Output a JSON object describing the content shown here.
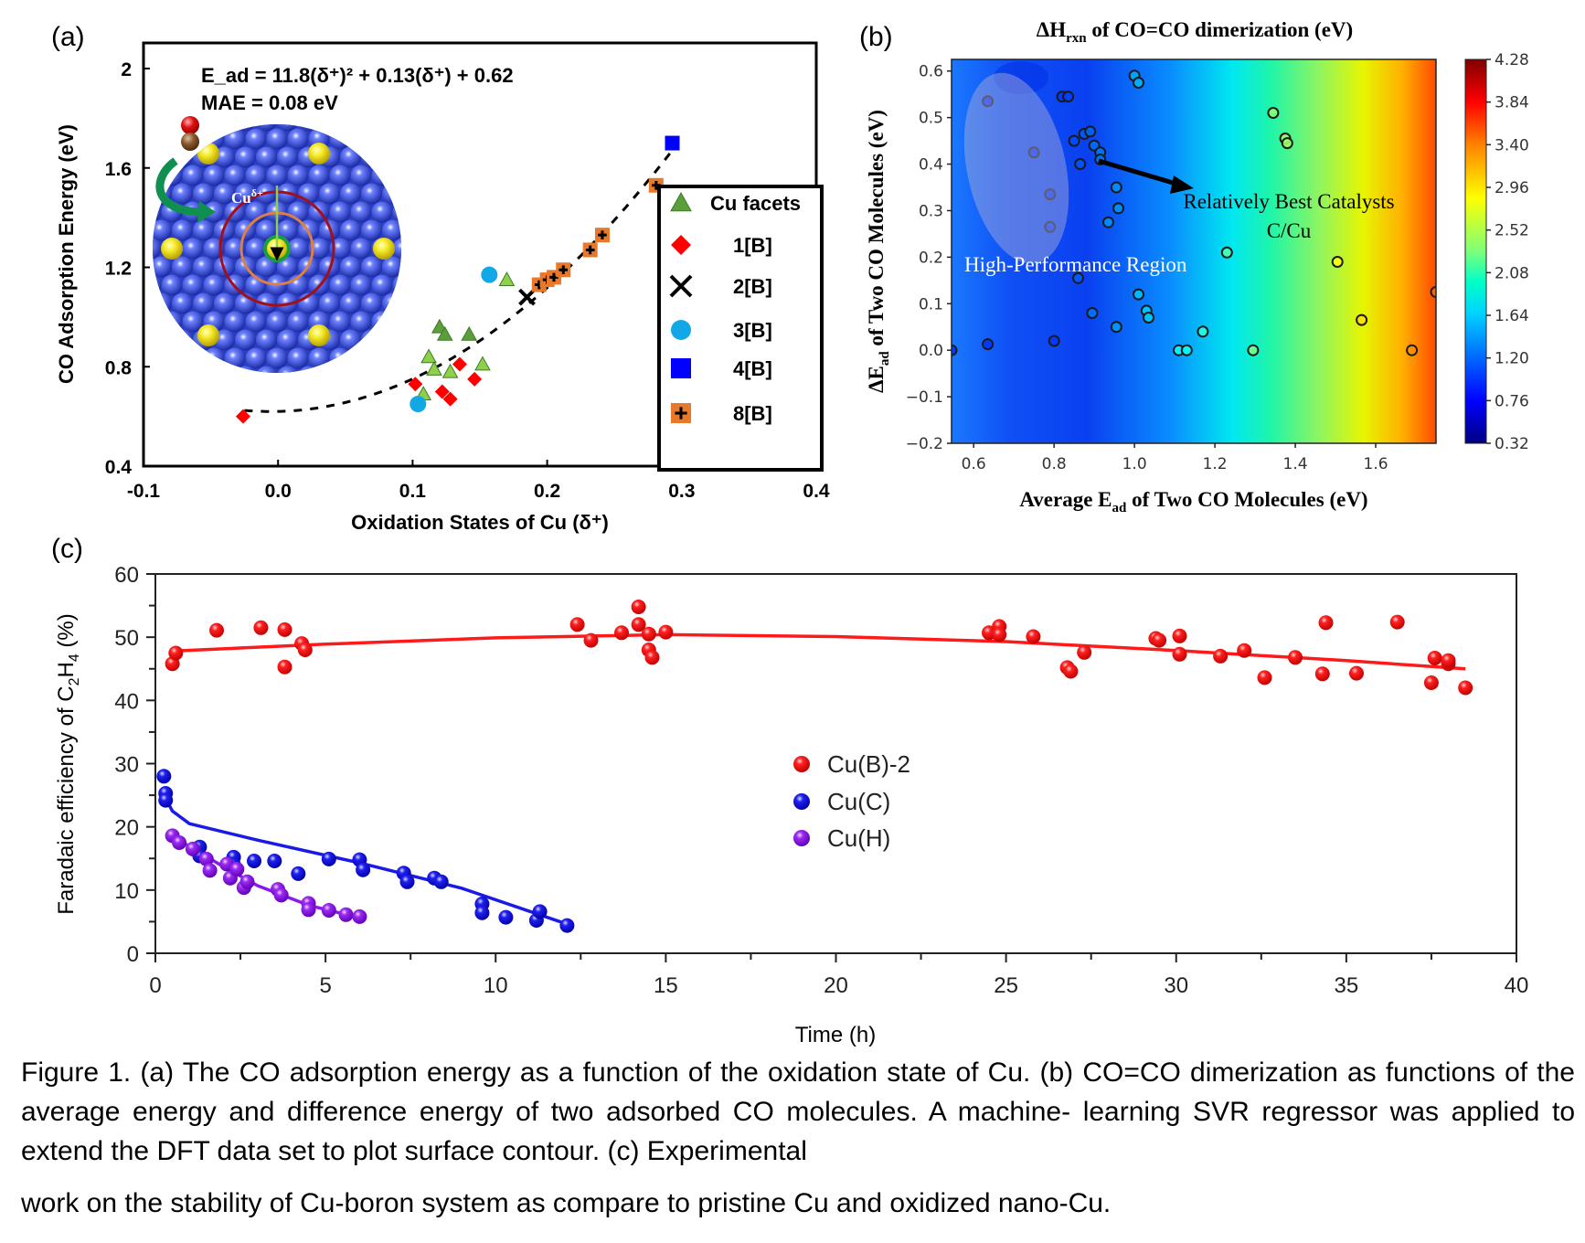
{
  "figure": {
    "caption_lines": [
      "Figure 1. (a) The CO adsorption energy as a function of the oxidation state of Cu. (b) CO=CO dimerization",
      "as functions of the average energy and difference energy of two adsorbed CO molecules. A machine-",
      "learning SVR regressor was applied to extend the DFT data set to plot surface contour. (c) Experimental",
      "work on the stability of Cu-boron system as compare to pristine Cu and oxidized nano-Cu."
    ]
  },
  "chart_data": [
    {
      "panel": "(a)",
      "type": "scatter",
      "title": "",
      "xlabel": "Oxidation States of Cu (δ⁺)",
      "ylabel": "CO Adsorption Energy (eV)",
      "xlim": [
        -0.1,
        0.4
      ],
      "ylim": [
        0.4,
        2.0
      ],
      "xticks": [
        "-0.1",
        "0.0",
        "0.1",
        "0.2",
        "0.3",
        "0.4"
      ],
      "yticks": [
        "0.4",
        "0.8",
        "1.2",
        "1.6",
        "2"
      ],
      "grid": false,
      "legend_position": "right",
      "annotation_lines": [
        "E_ad = 11.8(δ⁺)² + 0.13(δ⁺) + 0.62",
        "MAE = 0.08 eV"
      ],
      "inset_label": "Cu",
      "inset_label_sup": "δ+",
      "fit": {
        "name": "quadratic fit",
        "a": 11.8,
        "b": 0.13,
        "c": 0.62,
        "x_range": [
          -0.025,
          0.295
        ],
        "style": "dashed"
      },
      "series": [
        {
          "name": "Cu facets",
          "marker": "triangle",
          "color": "#5c9e3c",
          "points": [
            [
              0.108,
              0.69
            ],
            [
              0.112,
              0.84
            ],
            [
              0.12,
              0.96
            ],
            [
              0.124,
              0.93
            ],
            [
              0.142,
              0.93
            ],
            [
              0.116,
              0.79
            ],
            [
              0.128,
              0.78
            ],
            [
              0.152,
              0.81
            ],
            [
              0.17,
              1.15
            ]
          ]
        },
        {
          "name": "1[B]",
          "marker": "diamond",
          "color": "#ff0000",
          "points": [
            [
              -0.026,
              0.6
            ],
            [
              0.102,
              0.73
            ],
            [
              0.122,
              0.7
            ],
            [
              0.128,
              0.67
            ],
            [
              0.135,
              0.81
            ],
            [
              0.146,
              0.75
            ]
          ]
        },
        {
          "name": "2[B]",
          "marker": "x",
          "color": "#000000",
          "points": [
            [
              0.185,
              1.08
            ]
          ]
        },
        {
          "name": "3[B]",
          "marker": "circle",
          "color": "#12a8e8",
          "points": [
            [
              0.104,
              0.65
            ],
            [
              0.157,
              1.17
            ]
          ]
        },
        {
          "name": "4[B]",
          "marker": "square",
          "color": "#0000ff",
          "points": [
            [
              0.293,
              1.7
            ]
          ]
        },
        {
          "name": "8[B]",
          "marker": "square-plus",
          "color": "#e8782a",
          "points": [
            [
              0.194,
              1.13
            ],
            [
              0.2,
              1.15
            ],
            [
              0.205,
              1.16
            ],
            [
              0.212,
              1.19
            ],
            [
              0.232,
              1.27
            ],
            [
              0.241,
              1.33
            ],
            [
              0.281,
              1.53
            ]
          ]
        }
      ]
    },
    {
      "panel": "(b)",
      "type": "heatmap",
      "title": "ΔH",
      "title_sub": "rxn",
      "title_rest": " of CO=CO dimerization (eV)",
      "xlabel": "Average E",
      "xlabel_sub": "ad",
      "xlabel_rest": " of Two CO Molecules (eV)",
      "ylabel": "ΔE",
      "ylabel_sub": "ad",
      "ylabel_rest": " of Two CO Molecules (eV)",
      "xlim": [
        0.545,
        1.75
      ],
      "ylim": [
        -0.2,
        0.625
      ],
      "xticks": [
        "0.6",
        "0.8",
        "1.0",
        "1.2",
        "1.4",
        "1.6"
      ],
      "yticks": [
        "−0.2",
        "−0.1",
        "0.0",
        "0.1",
        "0.2",
        "0.3",
        "0.4",
        "0.5",
        "0.6"
      ],
      "colorbar": {
        "min": 0.32,
        "max": 4.28,
        "ticks": [
          "0.32",
          "0.76",
          "1.20",
          "1.64",
          "2.08",
          "2.52",
          "2.96",
          "3.40",
          "3.84",
          "4.28"
        ],
        "colormap": "jet"
      },
      "annotations": {
        "arrow_label_line1": "Relatively Best Catalysts",
        "arrow_label_line2": "C/Cu",
        "region_label": "High-Performance Region"
      },
      "points": [
        [
          0.545,
          0.0
        ],
        [
          0.635,
          0.013
        ],
        [
          0.635,
          0.535
        ],
        [
          0.75,
          0.425
        ],
        [
          0.79,
          0.335
        ],
        [
          0.79,
          0.265
        ],
        [
          0.8,
          0.02
        ],
        [
          0.82,
          0.545
        ],
        [
          0.835,
          0.545
        ],
        [
          0.85,
          0.45
        ],
        [
          0.86,
          0.155
        ],
        [
          0.865,
          0.4
        ],
        [
          0.875,
          0.465
        ],
        [
          0.89,
          0.47
        ],
        [
          0.895,
          0.08
        ],
        [
          0.9,
          0.44
        ],
        [
          0.915,
          0.425
        ],
        [
          0.915,
          0.41
        ],
        [
          0.935,
          0.275
        ],
        [
          0.955,
          0.35
        ],
        [
          0.955,
          0.05
        ],
        [
          0.96,
          0.305
        ],
        [
          1.0,
          0.59
        ],
        [
          1.01,
          0.575
        ],
        [
          1.01,
          0.12
        ],
        [
          1.03,
          0.085
        ],
        [
          1.035,
          0.07
        ],
        [
          1.11,
          0.0
        ],
        [
          1.13,
          0.0
        ],
        [
          1.17,
          0.04
        ],
        [
          1.23,
          0.21
        ],
        [
          1.295,
          0.0
        ],
        [
          1.345,
          0.51
        ],
        [
          1.375,
          0.455
        ],
        [
          1.38,
          0.445
        ],
        [
          1.505,
          0.19
        ],
        [
          1.565,
          0.065
        ],
        [
          1.69,
          0.0
        ],
        [
          1.75,
          0.125
        ]
      ]
    },
    {
      "panel": "(c)",
      "type": "scatter",
      "title": "",
      "xlabel": "Time (h)",
      "ylabel": "Faradaic efficiency of C",
      "ylabel_sub1": "2",
      "ylabel_mid": "H",
      "ylabel_sub2": "4",
      "ylabel_rest": " (%)",
      "xlim": [
        0,
        40
      ],
      "ylim": [
        0,
        60
      ],
      "xticks": [
        "0",
        "5",
        "10",
        "15",
        "20",
        "25",
        "30",
        "35",
        "40"
      ],
      "yticks": [
        "0",
        "10",
        "20",
        "30",
        "40",
        "50",
        "60"
      ],
      "grid": false,
      "legend_position": "center-left",
      "series": [
        {
          "name": "Cu(B)-2",
          "color": "#ff1a1a",
          "points": [
            [
              0.5,
              45.8
            ],
            [
              0.6,
              47.5
            ],
            [
              1.8,
              51.1
            ],
            [
              3.1,
              51.5
            ],
            [
              3.8,
              51.2
            ],
            [
              3.8,
              45.3
            ],
            [
              4.3,
              49
            ],
            [
              4.4,
              48
            ],
            [
              12.4,
              52
            ],
            [
              12.8,
              49.5
            ],
            [
              13.7,
              50.7
            ],
            [
              14.2,
              54.8
            ],
            [
              14.2,
              52
            ],
            [
              14.5,
              50.5
            ],
            [
              14.5,
              48
            ],
            [
              14.6,
              46.8
            ],
            [
              15,
              50.8
            ],
            [
              24.5,
              50.7
            ],
            [
              24.8,
              51.7
            ],
            [
              24.8,
              50.4
            ],
            [
              25.8,
              50.1
            ],
            [
              26.8,
              45.2
            ],
            [
              26.9,
              44.6
            ],
            [
              27.3,
              47.6
            ],
            [
              29.4,
              49.8
            ],
            [
              29.5,
              49.5
            ],
            [
              30.1,
              50.2
            ],
            [
              30.1,
              47.3
            ],
            [
              31.3,
              47
            ],
            [
              32,
              47.9
            ],
            [
              32.6,
              43.6
            ],
            [
              33.5,
              46.8
            ],
            [
              34.3,
              44.2
            ],
            [
              34.4,
              52.3
            ],
            [
              35.3,
              44.3
            ],
            [
              36.5,
              52.4
            ],
            [
              37.5,
              42.8
            ],
            [
              37.6,
              46.7
            ],
            [
              38,
              45.8
            ],
            [
              38,
              46.3
            ],
            [
              38.5,
              42
            ]
          ],
          "fit": [
            [
              0.5,
              47.8
            ],
            [
              5,
              48.9
            ],
            [
              10,
              49.9
            ],
            [
              15,
              50.4
            ],
            [
              20,
              50.1
            ],
            [
              25,
              49.3
            ],
            [
              30,
              47.9
            ],
            [
              35,
              46.3
            ],
            [
              38.5,
              45
            ]
          ]
        },
        {
          "name": "Cu(C)",
          "color": "#1a1ae6",
          "points": [
            [
              0.25,
              28
            ],
            [
              0.3,
              25.3
            ],
            [
              0.3,
              24.2
            ],
            [
              1.3,
              16.8
            ],
            [
              1.3,
              15.4
            ],
            [
              2.3,
              15.2
            ],
            [
              2.3,
              14
            ],
            [
              2.9,
              14.6
            ],
            [
              3.5,
              14.6
            ],
            [
              4.2,
              12.6
            ],
            [
              5.1,
              14.9
            ],
            [
              6,
              14.8
            ],
            [
              6.1,
              13.2
            ],
            [
              7.3,
              12.7
            ],
            [
              7.4,
              11.3
            ],
            [
              8.2,
              11.9
            ],
            [
              8.4,
              11.3
            ],
            [
              9.6,
              7.8
            ],
            [
              9.6,
              6.4
            ],
            [
              10.3,
              5.7
            ],
            [
              11.2,
              5.2
            ],
            [
              11.3,
              6.6
            ],
            [
              12.1,
              4.4
            ]
          ],
          "fit": [
            [
              0.15,
              26
            ],
            [
              0.5,
              22.5
            ],
            [
              1,
              20.5
            ],
            [
              3,
              17.9
            ],
            [
              6,
              14.3
            ],
            [
              9,
              10.3
            ],
            [
              12,
              4.8
            ]
          ]
        },
        {
          "name": "Cu(H)",
          "color": "#8a1ae6",
          "points": [
            [
              0.5,
              18.6
            ],
            [
              0.7,
              17.5
            ],
            [
              1.1,
              16.5
            ],
            [
              1.5,
              14.9
            ],
            [
              1.6,
              13.1
            ],
            [
              2.1,
              14.1
            ],
            [
              2.2,
              11.9
            ],
            [
              2.4,
              13.3
            ],
            [
              2.6,
              10.4
            ],
            [
              2.7,
              11.3
            ],
            [
              3.6,
              10.1
            ],
            [
              3.7,
              9.2
            ],
            [
              4.5,
              7.9
            ],
            [
              4.5,
              6.9
            ],
            [
              5.1,
              6.8
            ],
            [
              5.6,
              6.1
            ],
            [
              6,
              5.8
            ]
          ],
          "fit": [
            [
              0.5,
              18.5
            ],
            [
              2,
              13.7
            ],
            [
              3,
              10.7
            ],
            [
              4.5,
              7.6
            ],
            [
              6,
              5.6
            ]
          ]
        }
      ]
    }
  ],
  "panel_labels": [
    "(a)",
    "(b)",
    "(c)"
  ],
  "legend_a": [
    "Cu facets",
    "1[B]",
    "2[B]",
    "3[B]",
    "4[B]",
    "8[B]"
  ]
}
